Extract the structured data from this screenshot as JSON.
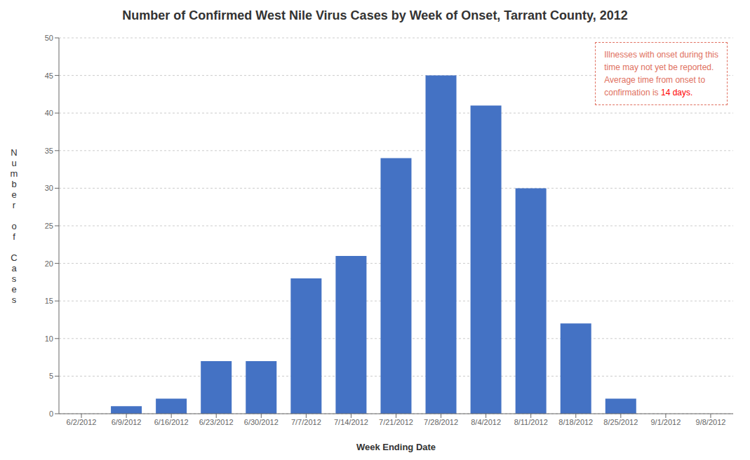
{
  "chart_data": {
    "type": "bar",
    "title": "Number of Confirmed West Nile Virus Cases by Week of Onset, Tarrant County, 2012",
    "xlabel": "Week Ending Date",
    "ylabel": "Number of Cases",
    "categories": [
      "6/2/2012",
      "6/9/2012",
      "6/16/2012",
      "6/23/2012",
      "6/30/2012",
      "7/7/2012",
      "7/14/2012",
      "7/21/2012",
      "7/28/2012",
      "8/4/2012",
      "8/11/2012",
      "8/18/2012",
      "8/25/2012",
      "9/1/2012",
      "9/8/2012"
    ],
    "values": [
      0,
      1,
      2,
      7,
      7,
      18,
      21,
      34,
      45,
      41,
      30,
      12,
      2,
      0,
      0
    ],
    "color": "#4472C4",
    "ylim": [
      0,
      50
    ],
    "yticks": [
      0,
      5,
      10,
      15,
      20,
      25,
      30,
      35,
      40,
      45,
      50
    ],
    "grid": true,
    "annotations": [
      {
        "text": "Illnesses with onset during this\ntime may not yet be reported.\nAverage time from onset to\nconfirmation is ",
        "color": "#E07060"
      },
      {
        "text": "14 days.",
        "color": "#FF0000"
      }
    ]
  }
}
